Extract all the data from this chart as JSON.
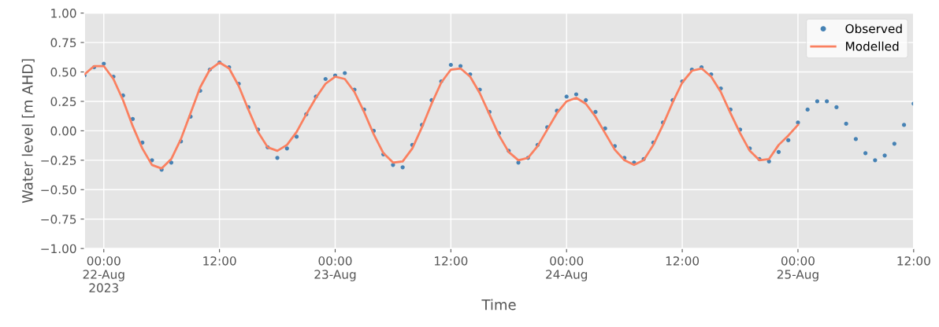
{
  "chart_data": {
    "type": "scatter",
    "xlabel": "Time",
    "ylabel": "Water level [m AHD]",
    "xlim": [
      "2023-08-21T22:00",
      "2023-08-25T12:00"
    ],
    "xticks": [
      {
        "value": "2023-08-22T00:00",
        "label": "00:00\n22-Aug\n2023"
      },
      {
        "value": "2023-08-22T12:00",
        "label": "12:00"
      },
      {
        "value": "2023-08-23T00:00",
        "label": "00:00\n23-Aug"
      },
      {
        "value": "2023-08-23T12:00",
        "label": "12:00"
      },
      {
        "value": "2023-08-24T00:00",
        "label": "00:00\n24-Aug"
      },
      {
        "value": "2023-08-24T12:00",
        "label": "12:00"
      },
      {
        "value": "2023-08-25T00:00",
        "label": "00:00\n25-Aug"
      },
      {
        "value": "2023-08-25T12:00",
        "label": "12:00"
      }
    ],
    "ylim": [
      -1.0,
      1.0
    ],
    "yticks": [
      {
        "value": -1.0,
        "label": "−1.00"
      },
      {
        "value": -0.75,
        "label": "−0.75"
      },
      {
        "value": -0.5,
        "label": "−0.50"
      },
      {
        "value": -0.25,
        "label": "−0.25"
      },
      {
        "value": 0.0,
        "label": "0.00"
      },
      {
        "value": 0.25,
        "label": "0.25"
      },
      {
        "value": 0.5,
        "label": "0.50"
      },
      {
        "value": 0.75,
        "label": "0.75"
      },
      {
        "value": 1.0,
        "label": "1.00"
      }
    ],
    "grid": true,
    "legend": "top right",
    "series": [
      {
        "name": "Observed",
        "marker": "circle",
        "color": "#4682b4",
        "x": [
          "2023-08-21T22:00",
          "2023-08-21T23:00",
          "2023-08-22T00:00",
          "2023-08-22T01:00",
          "2023-08-22T02:00",
          "2023-08-22T03:00",
          "2023-08-22T04:00",
          "2023-08-22T05:00",
          "2023-08-22T06:00",
          "2023-08-22T07:00",
          "2023-08-22T08:00",
          "2023-08-22T09:00",
          "2023-08-22T10:00",
          "2023-08-22T11:00",
          "2023-08-22T12:00",
          "2023-08-22T13:00",
          "2023-08-22T14:00",
          "2023-08-22T15:00",
          "2023-08-22T16:00",
          "2023-08-22T17:00",
          "2023-08-22T18:00",
          "2023-08-22T19:00",
          "2023-08-22T20:00",
          "2023-08-22T21:00",
          "2023-08-22T22:00",
          "2023-08-22T23:00",
          "2023-08-23T00:00",
          "2023-08-23T01:00",
          "2023-08-23T02:00",
          "2023-08-23T03:00",
          "2023-08-23T04:00",
          "2023-08-23T05:00",
          "2023-08-23T06:00",
          "2023-08-23T07:00",
          "2023-08-23T08:00",
          "2023-08-23T09:00",
          "2023-08-23T10:00",
          "2023-08-23T11:00",
          "2023-08-23T12:00",
          "2023-08-23T13:00",
          "2023-08-23T14:00",
          "2023-08-23T15:00",
          "2023-08-23T16:00",
          "2023-08-23T17:00",
          "2023-08-23T18:00",
          "2023-08-23T19:00",
          "2023-08-23T20:00",
          "2023-08-23T21:00",
          "2023-08-23T22:00",
          "2023-08-23T23:00",
          "2023-08-24T00:00",
          "2023-08-24T01:00",
          "2023-08-24T02:00",
          "2023-08-24T03:00",
          "2023-08-24T04:00",
          "2023-08-24T05:00",
          "2023-08-24T06:00",
          "2023-08-24T07:00",
          "2023-08-24T08:00",
          "2023-08-24T09:00",
          "2023-08-24T10:00",
          "2023-08-24T11:00",
          "2023-08-24T12:00",
          "2023-08-24T13:00",
          "2023-08-24T14:00",
          "2023-08-24T15:00",
          "2023-08-24T16:00",
          "2023-08-24T17:00",
          "2023-08-24T18:00",
          "2023-08-24T19:00",
          "2023-08-24T20:00",
          "2023-08-24T21:00",
          "2023-08-24T22:00",
          "2023-08-24T23:00",
          "2023-08-25T00:00",
          "2023-08-25T01:00",
          "2023-08-25T02:00",
          "2023-08-25T03:00",
          "2023-08-25T04:00",
          "2023-08-25T05:00",
          "2023-08-25T06:00",
          "2023-08-25T07:00",
          "2023-08-25T08:00",
          "2023-08-25T09:00",
          "2023-08-25T10:00",
          "2023-08-25T11:00",
          "2023-08-25T12:00"
        ],
        "values": [
          0.47,
          0.54,
          0.57,
          0.46,
          0.3,
          0.1,
          -0.1,
          -0.25,
          -0.33,
          -0.27,
          -0.09,
          0.12,
          0.34,
          0.52,
          0.58,
          0.54,
          0.4,
          0.2,
          0.01,
          -0.14,
          -0.23,
          -0.15,
          -0.05,
          0.14,
          0.29,
          0.44,
          0.47,
          0.49,
          0.35,
          0.18,
          0.0,
          -0.2,
          -0.29,
          -0.31,
          -0.12,
          0.05,
          0.26,
          0.42,
          0.56,
          0.55,
          0.48,
          0.35,
          0.16,
          -0.02,
          -0.17,
          -0.27,
          -0.23,
          -0.12,
          0.03,
          0.17,
          0.29,
          0.31,
          0.26,
          0.16,
          0.02,
          -0.13,
          -0.23,
          -0.27,
          -0.24,
          -0.1,
          0.07,
          0.26,
          0.42,
          0.52,
          0.54,
          0.48,
          0.36,
          0.18,
          0.01,
          -0.15,
          -0.24,
          -0.26,
          -0.18,
          -0.08,
          0.07,
          0.18,
          0.25,
          0.25,
          0.2,
          0.06,
          -0.07,
          -0.19,
          -0.25,
          -0.21,
          -0.11,
          0.05,
          0.23
        ]
      },
      {
        "name": "Modelled",
        "type": "line",
        "line_style": "solid",
        "color": "#fa8060",
        "x": [
          "2023-08-21T22:00",
          "2023-08-21T23:00",
          "2023-08-22T00:00",
          "2023-08-22T01:00",
          "2023-08-22T02:00",
          "2023-08-22T03:00",
          "2023-08-22T04:00",
          "2023-08-22T05:00",
          "2023-08-22T06:00",
          "2023-08-22T07:00",
          "2023-08-22T08:00",
          "2023-08-22T09:00",
          "2023-08-22T10:00",
          "2023-08-22T11:00",
          "2023-08-22T12:00",
          "2023-08-22T13:00",
          "2023-08-22T14:00",
          "2023-08-22T15:00",
          "2023-08-22T16:00",
          "2023-08-22T17:00",
          "2023-08-22T18:00",
          "2023-08-22T19:00",
          "2023-08-22T20:00",
          "2023-08-22T21:00",
          "2023-08-22T22:00",
          "2023-08-22T23:00",
          "2023-08-23T00:00",
          "2023-08-23T01:00",
          "2023-08-23T02:00",
          "2023-08-23T03:00",
          "2023-08-23T04:00",
          "2023-08-23T05:00",
          "2023-08-23T06:00",
          "2023-08-23T07:00",
          "2023-08-23T08:00",
          "2023-08-23T09:00",
          "2023-08-23T10:00",
          "2023-08-23T11:00",
          "2023-08-23T12:00",
          "2023-08-23T13:00",
          "2023-08-23T14:00",
          "2023-08-23T15:00",
          "2023-08-23T16:00",
          "2023-08-23T17:00",
          "2023-08-23T18:00",
          "2023-08-23T19:00",
          "2023-08-23T20:00",
          "2023-08-23T21:00",
          "2023-08-23T22:00",
          "2023-08-23T23:00",
          "2023-08-24T00:00",
          "2023-08-24T01:00",
          "2023-08-24T02:00",
          "2023-08-24T03:00",
          "2023-08-24T04:00",
          "2023-08-24T05:00",
          "2023-08-24T06:00",
          "2023-08-24T07:00",
          "2023-08-24T08:00",
          "2023-08-24T09:00",
          "2023-08-24T10:00",
          "2023-08-24T11:00",
          "2023-08-24T12:00",
          "2023-08-24T13:00",
          "2023-08-24T14:00",
          "2023-08-24T15:00",
          "2023-08-24T16:00",
          "2023-08-24T17:00",
          "2023-08-24T18:00",
          "2023-08-24T19:00",
          "2023-08-24T20:00",
          "2023-08-24T21:00",
          "2023-08-24T22:00",
          "2023-08-24T23:00",
          "2023-08-25T00:00"
        ],
        "values": [
          0.48,
          0.55,
          0.55,
          0.44,
          0.26,
          0.04,
          -0.15,
          -0.29,
          -0.32,
          -0.24,
          -0.07,
          0.15,
          0.37,
          0.52,
          0.58,
          0.53,
          0.38,
          0.18,
          -0.01,
          -0.14,
          -0.17,
          -0.12,
          -0.01,
          0.14,
          0.28,
          0.4,
          0.46,
          0.44,
          0.33,
          0.16,
          -0.03,
          -0.19,
          -0.27,
          -0.26,
          -0.15,
          0.03,
          0.23,
          0.41,
          0.52,
          0.53,
          0.46,
          0.32,
          0.14,
          -0.04,
          -0.18,
          -0.25,
          -0.23,
          -0.13,
          0.01,
          0.15,
          0.25,
          0.28,
          0.23,
          0.12,
          -0.02,
          -0.16,
          -0.25,
          -0.29,
          -0.25,
          -0.12,
          0.05,
          0.24,
          0.41,
          0.51,
          0.53,
          0.46,
          0.33,
          0.15,
          -0.02,
          -0.17,
          -0.25,
          -0.24,
          -0.12,
          -0.04,
          0.05
        ]
      }
    ]
  }
}
